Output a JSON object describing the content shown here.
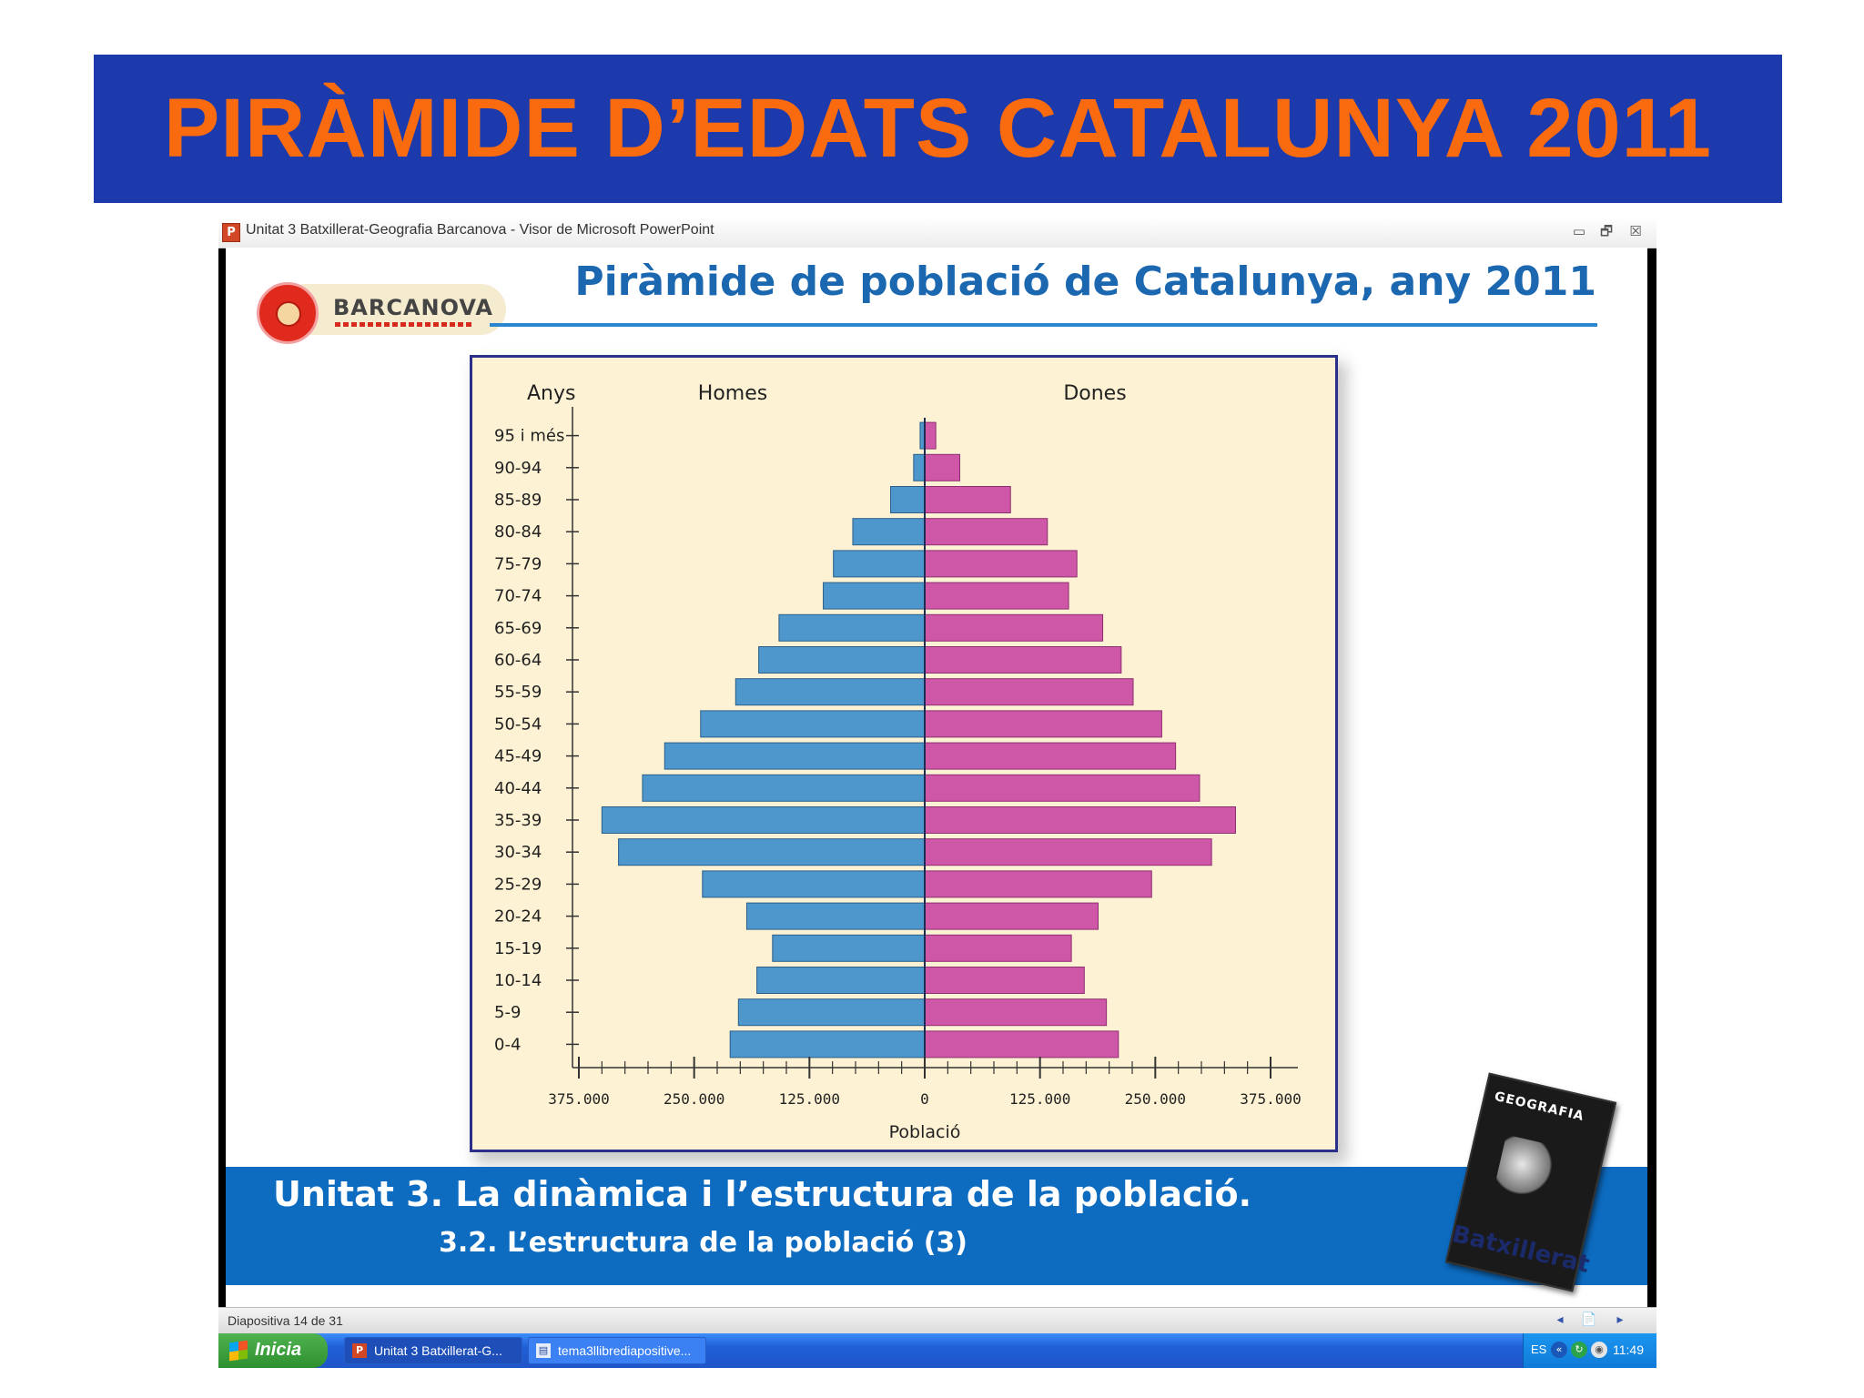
{
  "outer": {
    "title": "PIRÀMIDE D’EDATS CATALUNYA 2011"
  },
  "window": {
    "title": "Unitat 3 Batxillerat-Geografia Barcanova - Visor de Microsoft PowerPoint",
    "app_icon_letter": "P",
    "minimize_glyph": "▭",
    "restore_glyph": "🗗",
    "close_glyph": "☒"
  },
  "slide": {
    "title": "Piràmide de població de Catalunya, any 2011",
    "logo_text": "BARCANOVA",
    "unit_title": "Unitat 3. La dinàmica i l’estructura de la població.",
    "unit_subtitle": "3.2. L’estructura de la població (3)",
    "book_title": "GEOGRAFIA",
    "book_caption": "Batxillerat"
  },
  "chart_data": {
    "type": "bar",
    "orientation": "horizontal-pyramid",
    "y_header": "Anys",
    "xlabel": "Població",
    "categories": [
      "95 i més",
      "90-94",
      "85-89",
      "80-84",
      "75-79",
      "70-74",
      "65-69",
      "60-64",
      "55-59",
      "50-54",
      "45-49",
      "40-44",
      "35-39",
      "30-34",
      "25-29",
      "20-24",
      "15-19",
      "10-14",
      "5-9",
      "0-4"
    ],
    "series": [
      {
        "name": "Homes",
        "color": "#4e97cc",
        "values": [
          5000,
          12000,
          37000,
          78000,
          99000,
          110000,
          158000,
          180000,
          205000,
          243000,
          282000,
          306000,
          350000,
          332000,
          241000,
          193000,
          165000,
          182000,
          202000,
          211000
        ]
      },
      {
        "name": "Dones",
        "color": "#cf57a8",
        "values": [
          12000,
          38000,
          93000,
          133000,
          165000,
          156000,
          193000,
          213000,
          226000,
          257000,
          272000,
          298000,
          337000,
          311000,
          246000,
          188000,
          159000,
          173000,
          197000,
          210000
        ]
      }
    ],
    "x_ticks": [
      "375.000",
      "250.000",
      "125.000",
      "0",
      "125.000",
      "250.000",
      "375.000"
    ],
    "xlim": [
      -375000,
      375000
    ]
  },
  "statusbar": {
    "slide_counter": "Diapositiva 14 de 31",
    "prev_glyph": "◂",
    "notes_glyph": "📄",
    "next_glyph": "▸"
  },
  "taskbar": {
    "start_label": "Inicia",
    "tasks": [
      {
        "label": "Unitat 3 Batxillerat-G...",
        "icon": "P",
        "active": true
      },
      {
        "label": "tema3llibrediapositive...",
        "icon": "▤",
        "active": false
      }
    ],
    "tray_lang": "ES",
    "tray_icon_1": "«",
    "tray_icon_2": "↻",
    "tray_icon_3": "◉",
    "clock": "11:49"
  },
  "colors": {
    "banner": "#1c3aab",
    "banner_text": "#fa6a0f",
    "chart_bg": "#fdf2d3",
    "footer_band": "#0d6bc0"
  }
}
